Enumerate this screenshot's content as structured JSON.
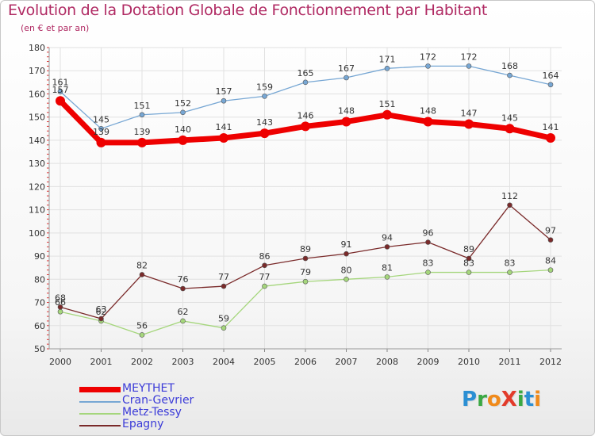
{
  "header": {
    "title": "Evolution de la Dotation Globale de Fonctionnement par Habitant",
    "subtitle": "(en € et par an)"
  },
  "logo": {
    "text": "ProXiti",
    "letters": [
      {
        "ch": "P",
        "color": "#2b8fd3"
      },
      {
        "ch": "r",
        "color": "#3aa843"
      },
      {
        "ch": "o",
        "color": "#f08a1a"
      },
      {
        "ch": "X",
        "color": "#e23b2a"
      },
      {
        "ch": "i",
        "color": "#3aa843"
      },
      {
        "ch": "t",
        "color": "#2b8fd3"
      },
      {
        "ch": "i",
        "color": "#f08a1a"
      }
    ]
  },
  "chart_data": {
    "type": "line",
    "title": "Evolution de la Dotation Globale de Fonctionnement par Habitant",
    "subtitle": "(en € et par an)",
    "xlabel": "",
    "ylabel": "",
    "ylim": [
      50,
      180
    ],
    "yticks": [
      50,
      60,
      70,
      80,
      90,
      100,
      110,
      120,
      130,
      140,
      150,
      160,
      170,
      180
    ],
    "grid": true,
    "legend_position": "bottom-left",
    "categories": [
      "2000",
      "2001",
      "2002",
      "2003",
      "2004",
      "2005",
      "2006",
      "2007",
      "2008",
      "2009",
      "2010",
      "2011",
      "2012"
    ],
    "series": [
      {
        "name": "MEYTHET",
        "color": "#ee0000",
        "values": [
          157,
          139,
          139,
          140,
          141,
          143,
          146,
          148,
          151,
          148,
          147,
          145,
          141
        ]
      },
      {
        "name": "Cran-Gevrier",
        "color": "#77a7d4",
        "values": [
          161,
          145,
          151,
          152,
          157,
          159,
          165,
          167,
          171,
          172,
          172,
          168,
          164
        ]
      },
      {
        "name": "Metz-Tessy",
        "color": "#a5d67c",
        "values": [
          66,
          62,
          56,
          62,
          59,
          77,
          79,
          80,
          81,
          83,
          83,
          83,
          84
        ]
      },
      {
        "name": "Epagny",
        "color": "#7a2a2a",
        "values": [
          68,
          63,
          82,
          76,
          77,
          86,
          89,
          91,
          94,
          96,
          89,
          112,
          97
        ]
      }
    ]
  }
}
